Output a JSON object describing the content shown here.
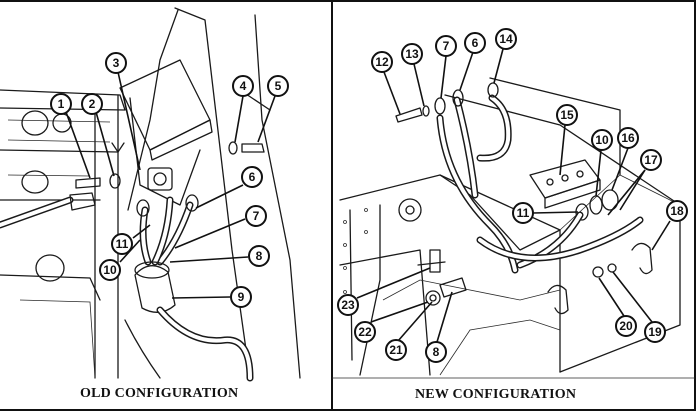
{
  "captions": {
    "left": "OLD CONFIGURATION",
    "right": "NEW CONFIGURATION"
  },
  "callouts": {
    "left": [
      "1",
      "2",
      "3",
      "4",
      "5",
      "6",
      "7",
      "8",
      "9",
      "10",
      "11"
    ],
    "right": [
      "12",
      "13",
      "7",
      "6",
      "14",
      "15",
      "10",
      "16",
      "17",
      "18",
      "11",
      "23",
      "22",
      "21",
      "8",
      "20",
      "19"
    ]
  }
}
